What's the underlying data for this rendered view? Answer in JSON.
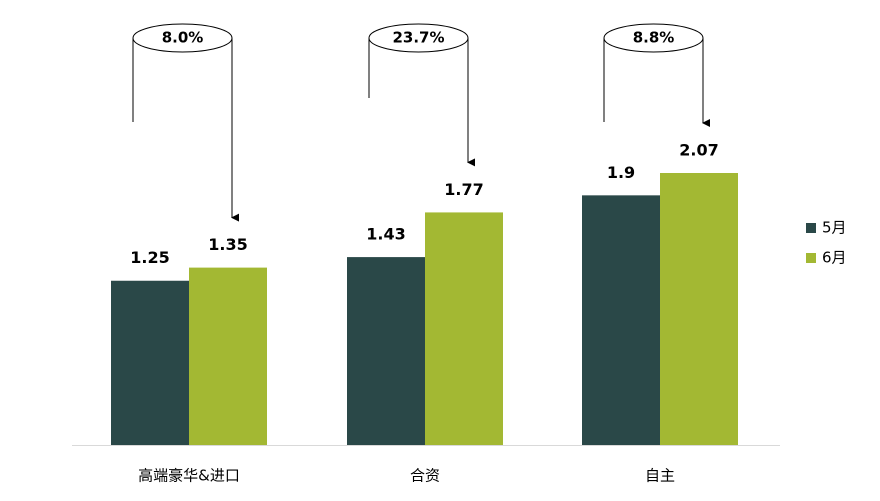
{
  "chart_data": {
    "type": "bar",
    "categories": [
      "高端豪华&进口",
      "合资",
      "自主"
    ],
    "series": [
      {
        "name": "5月",
        "color": "#2a4848",
        "values": [
          1.25,
          1.43,
          1.9
        ]
      },
      {
        "name": "6月",
        "color": "#a3b833",
        "values": [
          1.35,
          1.77,
          2.07
        ]
      }
    ],
    "annotations": [
      "8.0%",
      "23.7%",
      "8.8%"
    ],
    "legend": "right"
  }
}
